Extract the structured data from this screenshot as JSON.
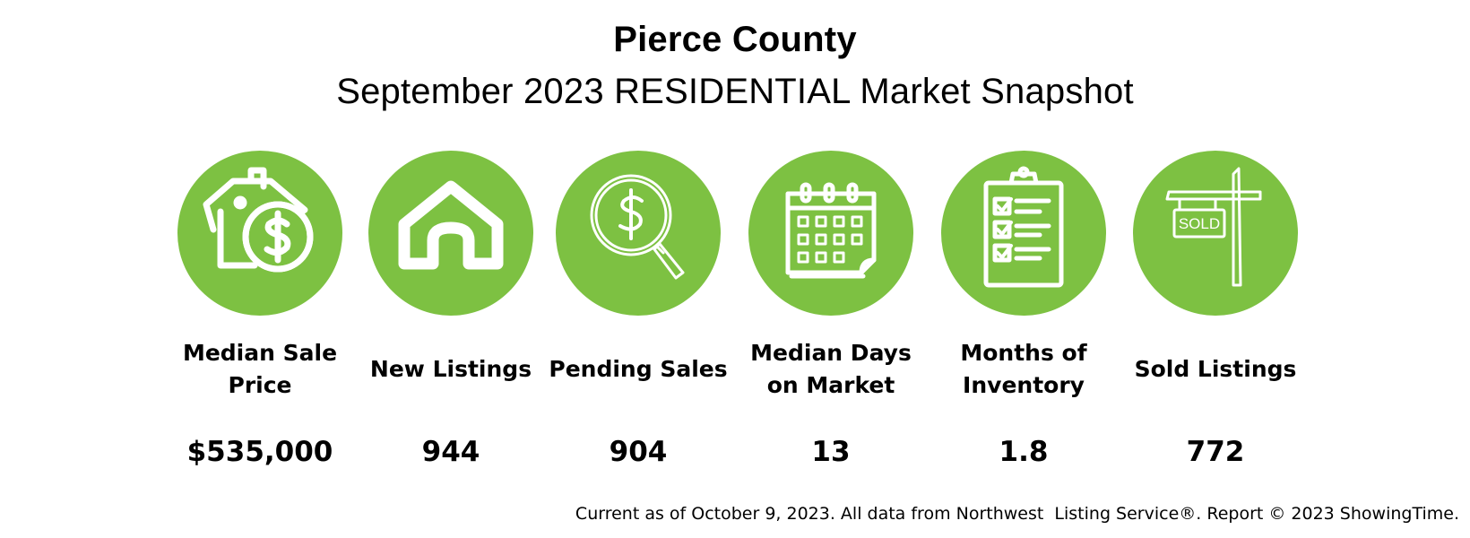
{
  "header": {
    "title": "Pierce County",
    "subtitle": "September 2023 RESIDENTIAL Market Snapshot"
  },
  "accent_color": "#7dc142",
  "stats": [
    {
      "icon": "house-dollar-icon",
      "label": "Median Sale Price",
      "value": "$535,000"
    },
    {
      "icon": "house-icon",
      "label": "New Listings",
      "value": "944"
    },
    {
      "icon": "magnifier-dollar-icon",
      "label": "Pending Sales",
      "value": "904"
    },
    {
      "icon": "calendar-icon",
      "label": "Median Days on Market",
      "value": "13"
    },
    {
      "icon": "clipboard-checklist-icon",
      "label": "Months of Inventory",
      "value": "1.8"
    },
    {
      "icon": "sold-sign-icon",
      "label": "Sold Listings",
      "value": "772",
      "sign_text": "SOLD"
    }
  ],
  "footer": "Current as of October 9, 2023. All data from Northwest  Listing Service®. Report © 2023 ShowingTime."
}
